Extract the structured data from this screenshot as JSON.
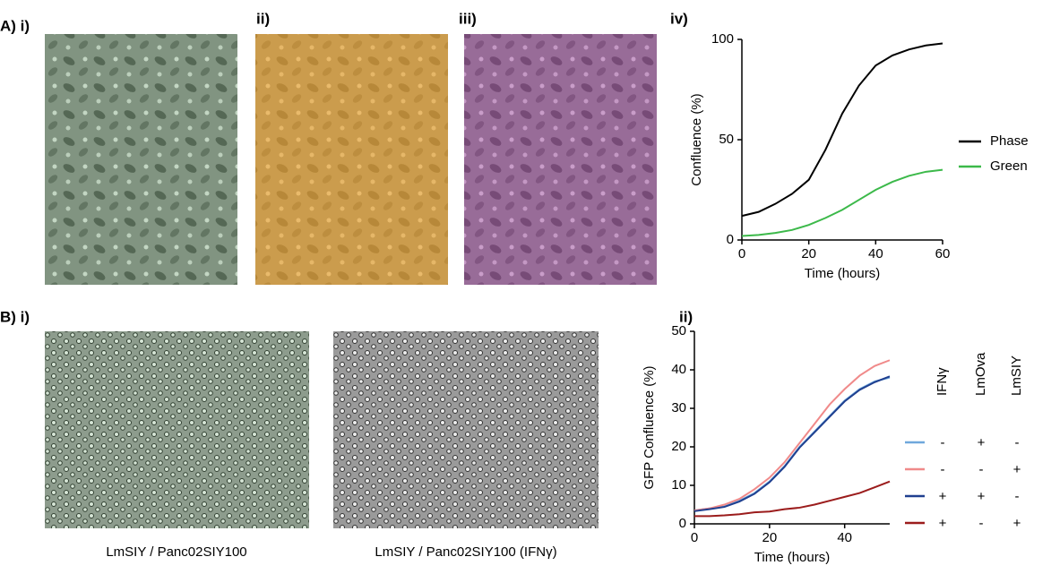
{
  "panel_labels": [
    "A) i)",
    "ii)",
    "iii)",
    "iv)",
    "B) i)",
    "ii)"
  ],
  "captions": [
    "LmSIY / Panc02SIY100",
    "LmSIY / Panc02SIY100 (IFNγ)"
  ],
  "chart_data": [
    {
      "type": "line",
      "x_label": "Time (hours)",
      "y_label": "Confluence (%)",
      "x": [
        0,
        5,
        10,
        15,
        20,
        25,
        30,
        35,
        40,
        45,
        50,
        55,
        60
      ],
      "xlim": [
        0,
        60
      ],
      "xticks": [
        0,
        20,
        40,
        60
      ],
      "ylim": [
        0,
        100
      ],
      "yticks": [
        0,
        50,
        100
      ],
      "series": [
        {
          "name": "Phase",
          "color": "#000000",
          "values": [
            12,
            14,
            18,
            23,
            30,
            45,
            63,
            77,
            87,
            92,
            95,
            97,
            98
          ]
        },
        {
          "name": "Green",
          "color": "#3cb94a",
          "values": [
            2,
            2.5,
            3.5,
            5,
            7.5,
            11,
            15,
            20,
            25,
            29,
            32,
            34,
            35
          ]
        }
      ]
    },
    {
      "type": "line",
      "x_label": "Time (hours)",
      "y_label": "GFP Confluence (%)",
      "x": [
        0,
        4,
        8,
        12,
        16,
        20,
        24,
        28,
        32,
        36,
        40,
        44,
        48,
        52
      ],
      "xlim": [
        0,
        52
      ],
      "xticks": [
        0,
        20,
        40
      ],
      "ylim": [
        0,
        50
      ],
      "yticks": [
        0,
        10,
        20,
        30,
        40,
        50
      ],
      "legend_columns": [
        "IFNγ",
        "LmOva",
        "LmSIY"
      ],
      "series": [
        {
          "color": "#6fa8dc",
          "conditions": [
            "-",
            "+",
            "-"
          ],
          "values": [
            3.5,
            4,
            4.5,
            6,
            8,
            11,
            15,
            20,
            24,
            28,
            32,
            35,
            37,
            38
          ]
        },
        {
          "color": "#f08a8a",
          "conditions": [
            "-",
            "-",
            "+"
          ],
          "values": [
            3.5,
            4,
            5,
            6.5,
            9,
            12,
            16,
            21,
            26,
            31,
            35,
            38.5,
            41,
            42.5
          ]
        },
        {
          "color": "#1f3f8f",
          "conditions": [
            "+",
            "+",
            "-"
          ],
          "values": [
            3.3,
            3.8,
            4.4,
            5.8,
            7.8,
            10.8,
            14.8,
            19.8,
            23.8,
            27.8,
            31.8,
            34.8,
            36.8,
            38.3
          ]
        },
        {
          "color": "#9b1c1c",
          "conditions": [
            "+",
            "-",
            "+"
          ],
          "values": [
            2,
            2,
            2.2,
            2.5,
            3,
            3.2,
            3.8,
            4.2,
            5,
            6,
            7,
            8,
            9.5,
            11
          ]
        }
      ]
    }
  ]
}
